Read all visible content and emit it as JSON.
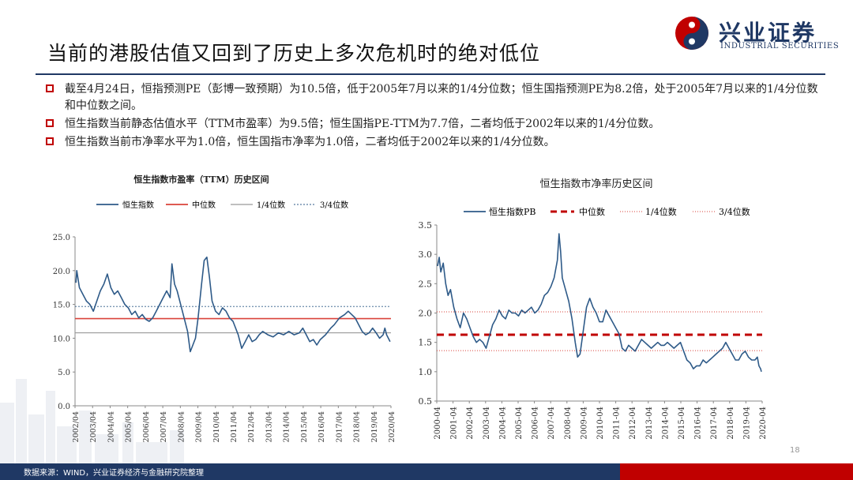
{
  "header": {
    "title": "当前的港股估值又回到了历史上多次危机时的绝对低位",
    "logo_cn": "兴业证券",
    "logo_en": "INDUSTRIAL SECURITIES"
  },
  "bullets": [
    "截至4月24日，恒指预测PE（彭博一致预期）为10.5倍，低于2005年7月以来的1/4分位数；恒生国指预测PE为8.2倍，处于2005年7月以来的1/4分位数和中位数之间。",
    "恒生指数当前静态估值水平（TTM市盈率）为9.5倍；恒生国指PE-TTM为7.7倍，二者均低于2002年以来的1/4分位数。",
    "恒生指数当前市净率水平为1.0倍，恒生国指市净率为1.0倍，二者均低于2002年以来的1/4分位数。"
  ],
  "footer": {
    "source": "数据来源：WIND，兴业证券经济与金融研究院整理",
    "page": "18"
  },
  "colors": {
    "navy": "#1f3864",
    "red": "#c00000",
    "series": "#2e5a88",
    "median": "#d9423a",
    "gray": "#999999"
  },
  "chart_data": [
    {
      "type": "line",
      "title": "恒生指数市盈率（TTM）历史区间",
      "legend": [
        "恒生指数",
        "中位数",
        "1/4位数",
        "3/4位数"
      ],
      "legend_placement": "top",
      "ylim": [
        0,
        25
      ],
      "yticks": [
        "0.0",
        "5.0",
        "10.0",
        "15.0",
        "20.0",
        "25.0"
      ],
      "xticks": [
        "2002/04",
        "2003/04",
        "2004/04",
        "2005/04",
        "2006/04",
        "2007/04",
        "2008/04",
        "2009/04",
        "2010/04",
        "2011/04",
        "2012/04",
        "2013/04",
        "2014/04",
        "2015/04",
        "2016/04",
        "2017/04",
        "2018/04",
        "2019/04",
        "2020/04"
      ],
      "x_start": 2002.25,
      "x_end": 2020.35,
      "median": 12.9,
      "q1": 10.8,
      "q3": 14.7,
      "series": [
        {
          "name": "恒生指数",
          "points": [
            [
              2002.3,
              18.2
            ],
            [
              2002.35,
              20.0
            ],
            [
              2002.5,
              17.5
            ],
            [
              2002.7,
              16.5
            ],
            [
              2002.9,
              15.5
            ],
            [
              2003.1,
              15.0
            ],
            [
              2003.3,
              14.0
            ],
            [
              2003.5,
              15.5
            ],
            [
              2003.7,
              17.0
            ],
            [
              2003.9,
              18.0
            ],
            [
              2004.1,
              19.5
            ],
            [
              2004.3,
              17.5
            ],
            [
              2004.5,
              16.5
            ],
            [
              2004.7,
              17.0
            ],
            [
              2004.9,
              16.0
            ],
            [
              2005.1,
              15.0
            ],
            [
              2005.3,
              14.5
            ],
            [
              2005.5,
              13.5
            ],
            [
              2005.7,
              14.0
            ],
            [
              2005.9,
              13.0
            ],
            [
              2006.1,
              13.5
            ],
            [
              2006.3,
              12.8
            ],
            [
              2006.5,
              12.5
            ],
            [
              2006.7,
              13.0
            ],
            [
              2006.9,
              14.0
            ],
            [
              2007.1,
              15.0
            ],
            [
              2007.3,
              16.0
            ],
            [
              2007.5,
              17.0
            ],
            [
              2007.7,
              16.0
            ],
            [
              2007.8,
              21.0
            ],
            [
              2007.95,
              18.0
            ],
            [
              2008.1,
              17.0
            ],
            [
              2008.3,
              15.0
            ],
            [
              2008.5,
              13.0
            ],
            [
              2008.7,
              11.0
            ],
            [
              2008.85,
              8.0
            ],
            [
              2009.0,
              9.0
            ],
            [
              2009.15,
              10.0
            ],
            [
              2009.3,
              13.0
            ],
            [
              2009.5,
              18.0
            ],
            [
              2009.65,
              21.5
            ],
            [
              2009.8,
              22.0
            ],
            [
              2009.95,
              19.0
            ],
            [
              2010.1,
              15.5
            ],
            [
              2010.3,
              14.0
            ],
            [
              2010.5,
              13.5
            ],
            [
              2010.7,
              14.5
            ],
            [
              2010.9,
              14.0
            ],
            [
              2011.1,
              13.0
            ],
            [
              2011.3,
              12.5
            ],
            [
              2011.6,
              10.5
            ],
            [
              2011.8,
              8.5
            ],
            [
              2012.0,
              9.5
            ],
            [
              2012.2,
              10.5
            ],
            [
              2012.4,
              9.5
            ],
            [
              2012.6,
              9.8
            ],
            [
              2012.8,
              10.5
            ],
            [
              2013.0,
              11.0
            ],
            [
              2013.3,
              10.5
            ],
            [
              2013.6,
              10.2
            ],
            [
              2013.9,
              10.8
            ],
            [
              2014.2,
              10.5
            ],
            [
              2014.5,
              11.0
            ],
            [
              2014.8,
              10.5
            ],
            [
              2015.1,
              10.8
            ],
            [
              2015.3,
              11.5
            ],
            [
              2015.5,
              10.5
            ],
            [
              2015.7,
              9.5
            ],
            [
              2015.9,
              9.8
            ],
            [
              2016.1,
              9.0
            ],
            [
              2016.3,
              9.8
            ],
            [
              2016.6,
              10.5
            ],
            [
              2016.9,
              11.5
            ],
            [
              2017.1,
              12.0
            ],
            [
              2017.4,
              13.0
            ],
            [
              2017.7,
              13.5
            ],
            [
              2017.9,
              14.0
            ],
            [
              2018.1,
              13.5
            ],
            [
              2018.3,
              13.0
            ],
            [
              2018.5,
              12.0
            ],
            [
              2018.7,
              11.0
            ],
            [
              2018.9,
              10.5
            ],
            [
              2019.1,
              10.8
            ],
            [
              2019.3,
              11.5
            ],
            [
              2019.5,
              10.8
            ],
            [
              2019.7,
              10.0
            ],
            [
              2019.9,
              10.5
            ],
            [
              2020.0,
              11.5
            ],
            [
              2020.1,
              10.5
            ],
            [
              2020.2,
              10.0
            ],
            [
              2020.3,
              9.5
            ]
          ]
        }
      ]
    },
    {
      "type": "line",
      "title": "恒生指数市净率历史区间",
      "legend": [
        "恒生指数PB",
        "中位数",
        "1/4位数",
        "3/4位数"
      ],
      "legend_placement": "top",
      "ylim": [
        0.5,
        3.5
      ],
      "yticks": [
        "0.5",
        "1.0",
        "1.5",
        "2.0",
        "2.5",
        "3.0",
        "3.5"
      ],
      "xticks": [
        "2000-04",
        "2001-04",
        "2002-04",
        "2003-04",
        "2004-04",
        "2005-04",
        "2006-04",
        "2007-04",
        "2008-04",
        "2009-04",
        "2010-04",
        "2011-04",
        "2012-04",
        "2013-04",
        "2014-04",
        "2015-04",
        "2016-04",
        "2017-04",
        "2018-04",
        "2019-04",
        "2020-04"
      ],
      "x_start": 2000.25,
      "x_end": 2020.35,
      "median": 1.63,
      "q1": 1.36,
      "q3": 2.02,
      "series": [
        {
          "name": "恒生指数PB",
          "points": [
            [
              2000.3,
              2.8
            ],
            [
              2000.4,
              2.95
            ],
            [
              2000.5,
              2.7
            ],
            [
              2000.65,
              2.85
            ],
            [
              2000.8,
              2.5
            ],
            [
              2000.95,
              2.3
            ],
            [
              2001.1,
              2.4
            ],
            [
              2001.3,
              2.1
            ],
            [
              2001.5,
              1.9
            ],
            [
              2001.7,
              1.75
            ],
            [
              2001.9,
              2.0
            ],
            [
              2002.1,
              1.9
            ],
            [
              2002.3,
              1.75
            ],
            [
              2002.5,
              1.6
            ],
            [
              2002.7,
              1.5
            ],
            [
              2002.9,
              1.55
            ],
            [
              2003.1,
              1.5
            ],
            [
              2003.3,
              1.4
            ],
            [
              2003.5,
              1.6
            ],
            [
              2003.7,
              1.8
            ],
            [
              2003.9,
              1.9
            ],
            [
              2004.1,
              2.05
            ],
            [
              2004.3,
              1.95
            ],
            [
              2004.5,
              1.9
            ],
            [
              2004.7,
              2.05
            ],
            [
              2004.9,
              2.0
            ],
            [
              2005.1,
              2.0
            ],
            [
              2005.3,
              1.95
            ],
            [
              2005.5,
              2.05
            ],
            [
              2005.7,
              2.0
            ],
            [
              2005.9,
              2.05
            ],
            [
              2006.1,
              2.1
            ],
            [
              2006.3,
              2.0
            ],
            [
              2006.5,
              2.05
            ],
            [
              2006.7,
              2.15
            ],
            [
              2006.9,
              2.3
            ],
            [
              2007.1,
              2.35
            ],
            [
              2007.3,
              2.45
            ],
            [
              2007.5,
              2.6
            ],
            [
              2007.7,
              2.9
            ],
            [
              2007.8,
              3.35
            ],
            [
              2007.9,
              3.05
            ],
            [
              2008.0,
              2.6
            ],
            [
              2008.2,
              2.4
            ],
            [
              2008.4,
              2.2
            ],
            [
              2008.6,
              1.9
            ],
            [
              2008.8,
              1.5
            ],
            [
              2008.95,
              1.25
            ],
            [
              2009.1,
              1.3
            ],
            [
              2009.3,
              1.7
            ],
            [
              2009.5,
              2.1
            ],
            [
              2009.7,
              2.25
            ],
            [
              2009.9,
              2.1
            ],
            [
              2010.1,
              2.0
            ],
            [
              2010.3,
              1.85
            ],
            [
              2010.5,
              1.85
            ],
            [
              2010.7,
              2.05
            ],
            [
              2010.9,
              1.95
            ],
            [
              2011.1,
              1.85
            ],
            [
              2011.3,
              1.75
            ],
            [
              2011.5,
              1.65
            ],
            [
              2011.7,
              1.4
            ],
            [
              2011.9,
              1.35
            ],
            [
              2012.1,
              1.45
            ],
            [
              2012.3,
              1.4
            ],
            [
              2012.5,
              1.35
            ],
            [
              2012.7,
              1.45
            ],
            [
              2012.9,
              1.55
            ],
            [
              2013.1,
              1.5
            ],
            [
              2013.3,
              1.45
            ],
            [
              2013.5,
              1.4
            ],
            [
              2013.7,
              1.45
            ],
            [
              2013.9,
              1.5
            ],
            [
              2014.1,
              1.45
            ],
            [
              2014.3,
              1.45
            ],
            [
              2014.5,
              1.5
            ],
            [
              2014.7,
              1.45
            ],
            [
              2014.9,
              1.4
            ],
            [
              2015.1,
              1.45
            ],
            [
              2015.3,
              1.5
            ],
            [
              2015.5,
              1.35
            ],
            [
              2015.7,
              1.2
            ],
            [
              2015.9,
              1.15
            ],
            [
              2016.1,
              1.05
            ],
            [
              2016.3,
              1.1
            ],
            [
              2016.5,
              1.1
            ],
            [
              2016.7,
              1.2
            ],
            [
              2016.9,
              1.15
            ],
            [
              2017.1,
              1.2
            ],
            [
              2017.3,
              1.25
            ],
            [
              2017.5,
              1.3
            ],
            [
              2017.7,
              1.35
            ],
            [
              2017.9,
              1.4
            ],
            [
              2018.1,
              1.5
            ],
            [
              2018.3,
              1.4
            ],
            [
              2018.5,
              1.3
            ],
            [
              2018.7,
              1.2
            ],
            [
              2018.9,
              1.2
            ],
            [
              2019.1,
              1.3
            ],
            [
              2019.3,
              1.35
            ],
            [
              2019.5,
              1.25
            ],
            [
              2019.7,
              1.2
            ],
            [
              2019.9,
              1.2
            ],
            [
              2020.05,
              1.25
            ],
            [
              2020.15,
              1.1
            ],
            [
              2020.25,
              1.05
            ],
            [
              2020.3,
              1.0
            ]
          ]
        }
      ]
    }
  ]
}
